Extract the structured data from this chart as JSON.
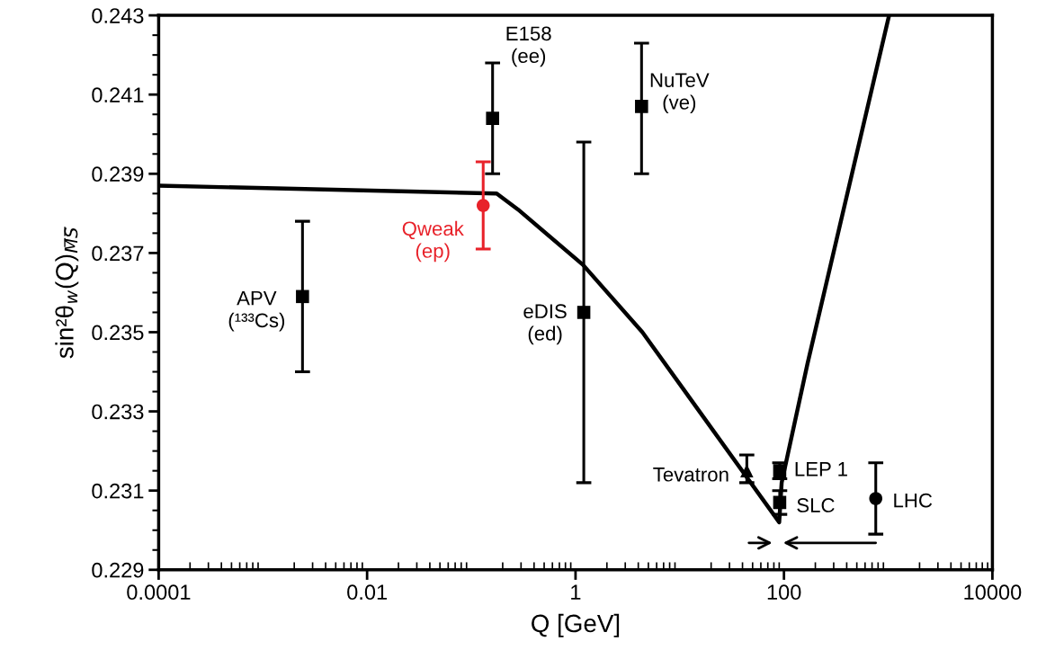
{
  "chart_data": {
    "type": "scatter",
    "xlabel": "Q [GeV]",
    "ylabel": "sin²θ$_{w}$(Q)$_{M̅S̅}$",
    "log": "x",
    "xlim": [
      0.0001,
      10000
    ],
    "xticks": [
      0.0001,
      0.01,
      1,
      100,
      10000
    ],
    "ylim": [
      0.229,
      0.243
    ],
    "yticks": [
      0.229,
      0.231,
      0.233,
      0.235,
      0.237,
      0.239,
      0.241,
      0.243
    ],
    "grid": false,
    "legend": false,
    "series": [
      {
        "type": "line",
        "color": "#000000",
        "marker": "none",
        "line_style": "solid",
        "x": [
          0.0001,
          0.175,
          0.28,
          1.18,
          4.38,
          90,
          95,
          168,
          1020
        ],
        "values": [
          0.2387,
          0.2385,
          0.2381,
          0.2367,
          0.235,
          0.2302,
          0.2312,
          0.2342,
          0.243
        ]
      },
      {
        "name": "APV\n(¹³³Cs)",
        "color": "#000000",
        "marker": "square",
        "x": [
          0.0024
        ],
        "values": [
          0.2359
        ],
        "errors": [
          [
            0.234,
            0.2378
          ]
        ]
      },
      {
        "name": "E158\n(ee)",
        "color": "#000000",
        "marker": "square",
        "x": [
          0.16
        ],
        "values": [
          0.2404
        ],
        "errors": [
          [
            0.239,
            0.2418
          ]
        ]
      },
      {
        "name": "Qweak\n(ep)",
        "color": "#e8222a",
        "marker": "circle",
        "x": [
          0.13
        ],
        "values": [
          0.2382
        ],
        "errors": [
          [
            0.2371,
            0.2393
          ]
        ]
      },
      {
        "name": "eDIS\n(ed)",
        "color": "#000000",
        "marker": "square",
        "x": [
          1.2
        ],
        "values": [
          0.2355
        ],
        "errors": [
          [
            0.2312,
            0.2398
          ]
        ]
      },
      {
        "name": "NuTeV\n(ve)",
        "color": "#000000",
        "marker": "square",
        "x": [
          4.3
        ],
        "values": [
          0.2407
        ],
        "errors": [
          [
            0.239,
            0.2423
          ]
        ]
      },
      {
        "name": "Tevatron",
        "color": "#000000",
        "marker": "triangle",
        "x": [
          44
        ],
        "values": [
          0.2315
        ],
        "errors": [
          [
            0.2312,
            0.2319
          ]
        ]
      },
      {
        "name": "LEP 1",
        "color": "#000000",
        "marker": "square",
        "x": [
          91
        ],
        "values": [
          0.2315
        ],
        "errors": [
          [
            0.2313,
            0.2317
          ]
        ]
      },
      {
        "name": "SLC",
        "color": "#000000",
        "marker": "square",
        "x": [
          91
        ],
        "values": [
          0.2307
        ],
        "errors": [
          [
            0.2304,
            0.231
          ]
        ]
      },
      {
        "name": "LHC",
        "color": "#000000",
        "marker": "circle",
        "x": [
          760
        ],
        "values": [
          0.2308
        ],
        "errors": [
          [
            0.2299,
            0.2317
          ]
        ]
      }
    ]
  }
}
